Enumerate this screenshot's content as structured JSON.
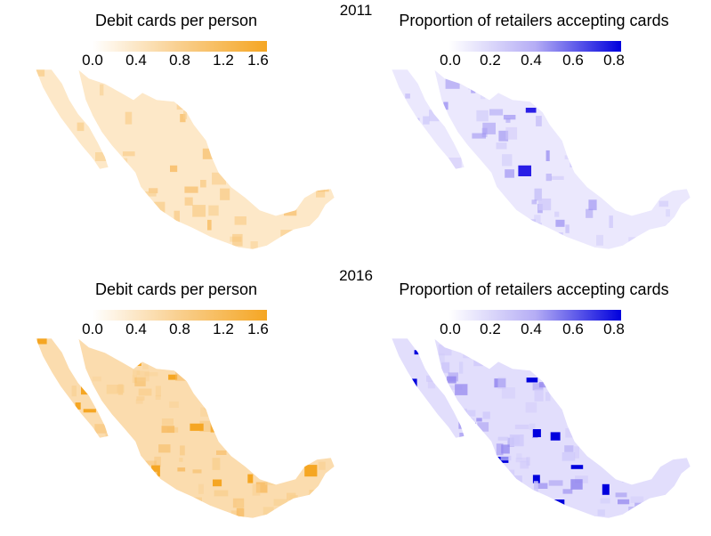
{
  "panels": [
    {
      "year": "2011",
      "left": {
        "title": "Debit cards per person",
        "ticks": [
          "0.0",
          "0.4",
          "0.8",
          "1.2",
          "1.6"
        ],
        "colors": [
          "#ffffff",
          "#f5a623"
        ]
      },
      "right": {
        "title": "Proportion of retailers accepting cards",
        "ticks": [
          "0.0",
          "0.2",
          "0.4",
          "0.6",
          "0.8"
        ],
        "colors": [
          "#ffffff",
          "#0000dd"
        ]
      }
    },
    {
      "year": "2016",
      "left": {
        "title": "Debit cards per person",
        "ticks": [
          "0.0",
          "0.4",
          "0.8",
          "1.2",
          "1.6"
        ],
        "colors": [
          "#ffffff",
          "#f5a623"
        ]
      },
      "right": {
        "title": "Proportion of retailers accepting cards",
        "ticks": [
          "0.0",
          "0.2",
          "0.4",
          "0.6",
          "0.8"
        ],
        "colors": [
          "#ffffff",
          "#0000dd"
        ]
      }
    }
  ]
}
